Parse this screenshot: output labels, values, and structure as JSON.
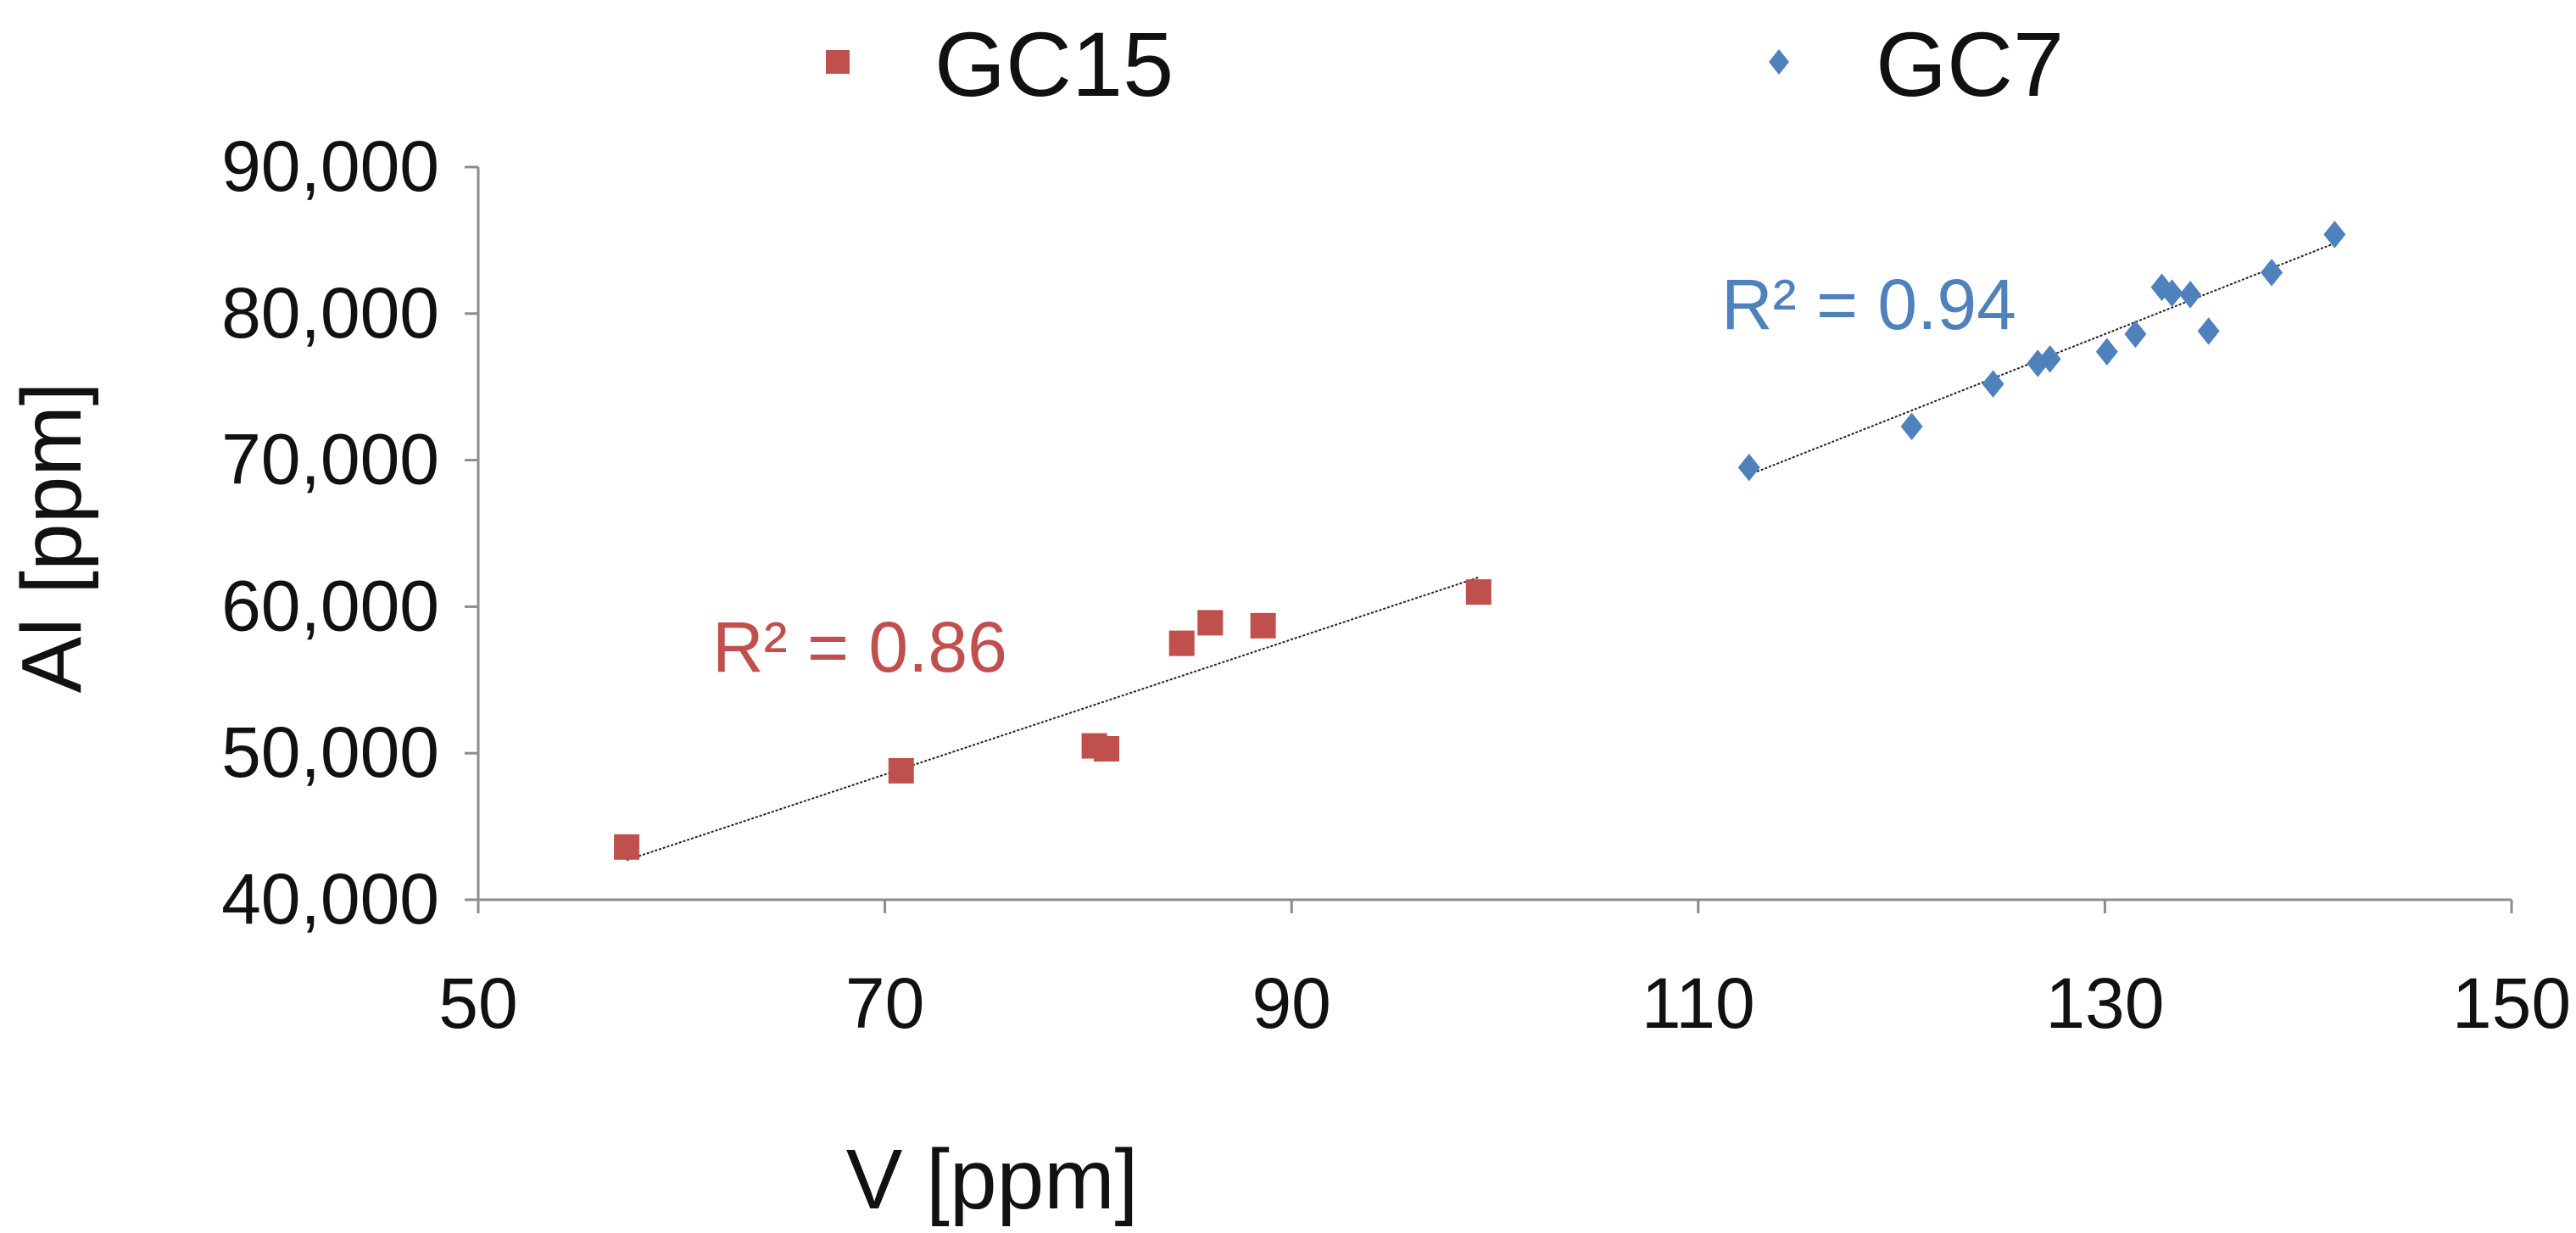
{
  "chart_data": {
    "type": "scatter",
    "title": "",
    "xlabel": "V [ppm]",
    "ylabel": "Al [ppm]",
    "xlim": [
      50,
      150
    ],
    "ylim": [
      40000,
      90000
    ],
    "xticks": [
      50,
      70,
      90,
      110,
      130,
      150
    ],
    "yticks": [
      40000,
      50000,
      60000,
      70000,
      80000,
      90000
    ],
    "xtick_labels": [
      "50",
      "70",
      "90",
      "110",
      "130",
      "150"
    ],
    "ytick_labels": [
      "40,000",
      "50,000",
      "60,000",
      "70,000",
      "80,000",
      "90,000"
    ],
    "grid": false,
    "legend_position": "top",
    "series": [
      {
        "name": "GC15",
        "marker": "square",
        "color": "#c0504d",
        "x": [
          57.3,
          70.8,
          80.3,
          80.9,
          84.6,
          86.0,
          88.6,
          99.2
        ],
        "y": [
          43600,
          48800,
          50500,
          50300,
          57500,
          58900,
          58700,
          61000
        ],
        "trendline": {
          "x": [
            57.3,
            99.2
          ],
          "y": [
            42700,
            62000
          ]
        },
        "r2_label": "R² = 0.86"
      },
      {
        "name": "GC7",
        "marker": "diamond",
        "color": "#4f81bd",
        "x": [
          112.5,
          120.5,
          124.5,
          126.7,
          127.3,
          130.1,
          131.5,
          132.8,
          133.3,
          134.2,
          135.1,
          138.2,
          141.3
        ],
        "y": [
          69500,
          72300,
          75200,
          76600,
          76900,
          77400,
          78600,
          81800,
          81400,
          81300,
          78800,
          82800,
          85400
        ],
        "trendline": {
          "x": [
            112.5,
            141.3
          ],
          "y": [
            69000,
            84800
          ]
        },
        "r2_label": "R² = 0.94"
      }
    ]
  }
}
